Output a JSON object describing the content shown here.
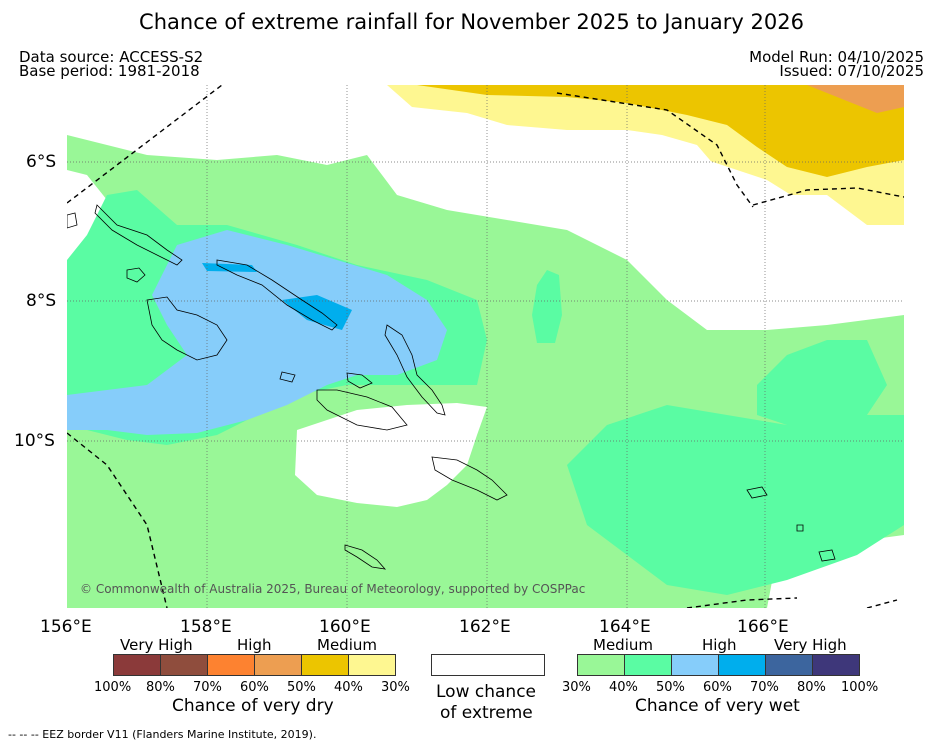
{
  "title": "Chance of extreme rainfall for November 2025 to January 2026",
  "meta": {
    "data_source": "Data source: ACCESS-S2",
    "base_period": "Base period: 1981-2018",
    "model_run": "Model Run: 04/10/2025",
    "issued": "Issued: 07/10/2025"
  },
  "map": {
    "lon_ticks": [
      "156°E",
      "158°E",
      "160°E",
      "162°E",
      "164°E",
      "166°E"
    ],
    "lat_ticks": [
      "6°S",
      "8°S",
      "10°S"
    ],
    "copyright": "© Commonwealth of Australia 2025, Bureau of Meteorology, supported by COSPPac"
  },
  "legend": {
    "dry": {
      "categories": [
        "Very High",
        "High",
        "Medium"
      ],
      "colors": [
        "#8b3a3a",
        "#8f4d3d",
        "#fd8230",
        "#ed9e51",
        "#ecc500",
        "#fef791"
      ],
      "percents": [
        "100%",
        "80%",
        "70%",
        "60%",
        "50%",
        "40%",
        "30%"
      ],
      "label": "Chance of very dry"
    },
    "low": {
      "line1": "Low chance",
      "line2": "of extreme"
    },
    "wet": {
      "categories": [
        "Medium",
        "High",
        "Very High"
      ],
      "colors": [
        "#99f797",
        "#5afca3",
        "#86cdfa",
        "#00aeed",
        "#3c659e",
        "#3e377a"
      ],
      "percents": [
        "30%",
        "40%",
        "50%",
        "60%",
        "70%",
        "80%",
        "100%"
      ],
      "label": "Chance of very wet"
    }
  },
  "footer": "--  --  -- EEZ border V11 (Flanders Marine Institute, 2019)."
}
